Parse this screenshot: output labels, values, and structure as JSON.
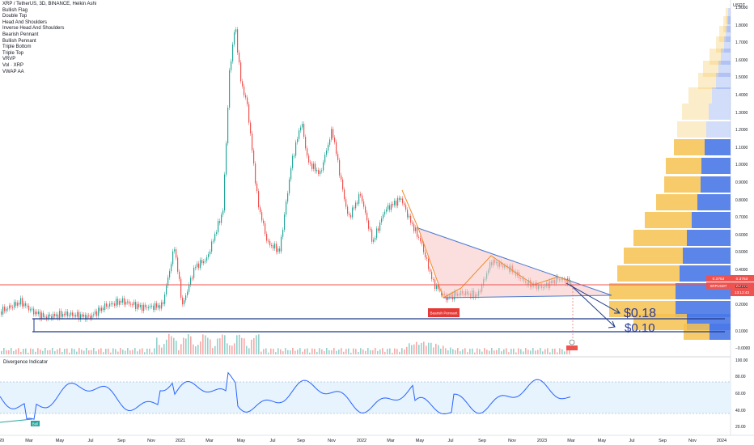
{
  "chart": {
    "title": "XRP / TetherUS, 3D, BINANCE, Heikin Ashi",
    "currency": "USDT",
    "legend_items": [
      "Bullish Flag",
      "Double Top",
      "Head And Shoulders",
      "Inverse Head And Shoulders",
      "Bearish Pennant",
      "Bullish Pennant",
      "Triple Bottom",
      "Triple Top",
      "VRVP",
      "Vol · XRP",
      "VWAP AA"
    ],
    "price_axis_ticks": [
      "1.9000",
      "1.8000",
      "1.7000",
      "1.6000",
      "1.5000",
      "1.4000",
      "1.3000",
      "1.2000",
      "1.1000",
      "1.0000",
      "0.9000",
      "0.8000",
      "0.7000",
      "0.6000",
      "0.5000",
      "0.4000",
      "0.3000",
      "0.2000",
      "0.1000",
      "−0.0000"
    ],
    "time_axis_labels": [
      "20",
      "Mar",
      "May",
      "Jul",
      "Sep",
      "Nov",
      "2021",
      "Mar",
      "May",
      "Jul",
      "Sep",
      "Nov",
      "2022",
      "Mar",
      "May",
      "Jul",
      "Sep",
      "Nov",
      "2023",
      "Mar",
      "May",
      "Jul",
      "Sep",
      "Nov",
      "2024"
    ],
    "price_labels": {
      "upper": "0.3753",
      "symbol": "XRPUSDT",
      "current": "0.3744",
      "countdown": "13:12:43"
    },
    "annotations": {
      "bearish_pennant": "Bearish Pennant",
      "target_1": "$0.18",
      "target_2": "$0.10"
    },
    "indicator": {
      "name": "Divergence Indicator",
      "ticks": [
        "100.00",
        "80.00",
        "60.00",
        "40.00",
        "20.00"
      ],
      "bull_label": "Bull"
    },
    "colors": {
      "up": "#26a69a",
      "down": "#ef5350",
      "blue_line": "#1e3a8a",
      "pennant_fill": "#f8c4c4",
      "orange": "#f08a24",
      "red_hline": "#ef5350",
      "rsi": "#2962ff"
    }
  }
}
